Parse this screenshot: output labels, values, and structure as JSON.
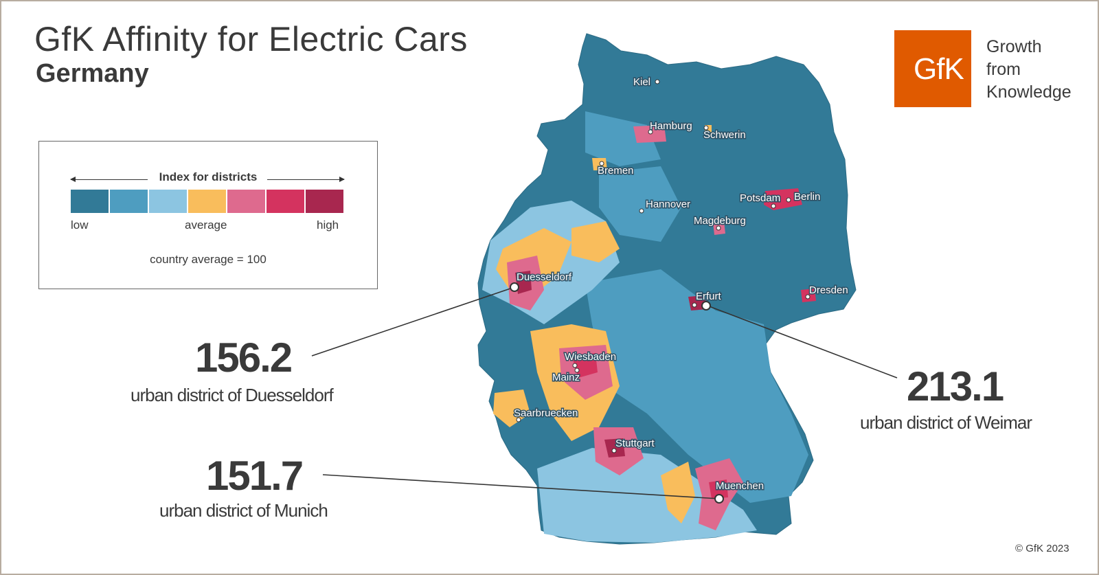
{
  "title": "GfK Affinity for Electric Cars",
  "subtitle": "Germany",
  "logo": {
    "mark": "GfK",
    "tagline": [
      "Growth",
      "from",
      "Knowledge"
    ]
  },
  "legend": {
    "title": "Index for districts",
    "low": "low",
    "average": "average",
    "high": "high",
    "note": "country average = 100",
    "colors": [
      "#327a97",
      "#4e9dc0",
      "#8cc5e1",
      "#f9bd5c",
      "#de6a8e",
      "#d4335f",
      "#a8274f"
    ]
  },
  "colors": {
    "border": "#b8aca0",
    "text": "#3a3a3a"
  },
  "callouts": {
    "duesseldorf": {
      "value": "156.2",
      "label": "urban district of Duesseldorf"
    },
    "munich": {
      "value": "151.7",
      "label": "urban district of Munich"
    },
    "weimar": {
      "value": "213.1",
      "label": "urban district of Weimar"
    }
  },
  "cities": {
    "kiel": "Kiel",
    "hamburg": "Hamburg",
    "schwerin": "Schwerin",
    "bremen": "Bremen",
    "hannover": "Hannover",
    "potsdam": "Potsdam",
    "berlin": "Berlin",
    "magdeburg": "Magdeburg",
    "duesseldorf": "Duesseldorf",
    "erfurt": "Erfurt",
    "dresden": "Dresden",
    "wiesbaden": "Wiesbaden",
    "mainz": "Mainz",
    "saarbruecken": "Saarbruecken",
    "stuttgart": "Stuttgart",
    "muenchen": "Muenchen"
  },
  "copyright": "© GfK 2023"
}
